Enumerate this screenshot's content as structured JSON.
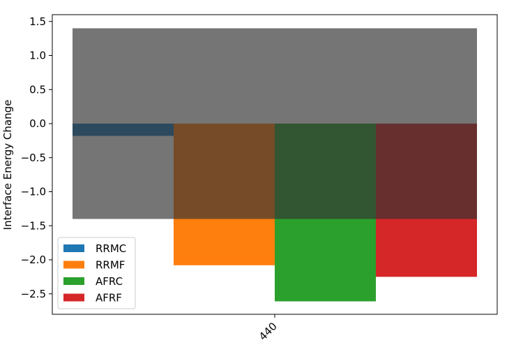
{
  "chart_data": {
    "type": "bar",
    "title": "",
    "xlabel": "",
    "ylabel": "Interface Energy Change",
    "categories": [
      "440"
    ],
    "series": [
      {
        "name": "RRMC",
        "values": [
          -0.18
        ],
        "color": "#1f77b4"
      },
      {
        "name": "RRMF",
        "values": [
          -2.08
        ],
        "color": "#ff7f0e"
      },
      {
        "name": "AFRC",
        "values": [
          -2.61
        ],
        "color": "#2ca02c"
      },
      {
        "name": "AFRF",
        "values": [
          -2.25
        ],
        "color": "#d62728"
      }
    ],
    "ylim": [
      -2.8,
      1.6
    ],
    "yticks": [
      1.5,
      1.0,
      0.5,
      0.0,
      -0.5,
      -1.0,
      -1.5,
      -2.0,
      -2.5
    ],
    "ytick_labels": [
      "1.5",
      "1.0",
      "0.5",
      "0.0",
      "−0.5",
      "−1.0",
      "−1.5",
      "−2.0",
      "−2.5"
    ],
    "overlay_band": {
      "y_min": -1.4,
      "y_max": 1.4,
      "color": "#333333",
      "opacity": 0.68
    },
    "grid": false,
    "legend_position": "lower-left"
  }
}
